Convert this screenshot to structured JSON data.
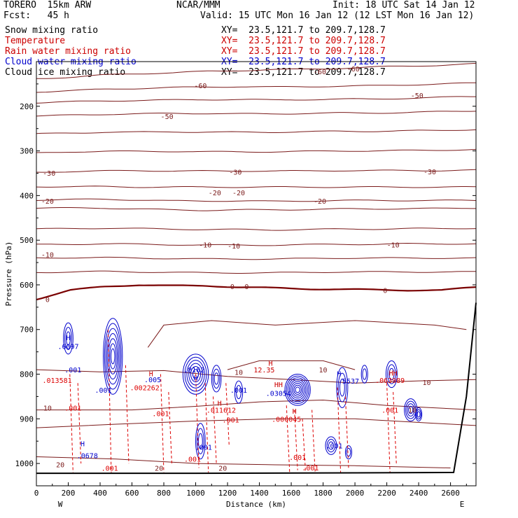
{
  "header": {
    "model": "TORERO  15km ARW",
    "org": "NCAR/MMM",
    "init": "Init: 18 UTC Sat 14 Jan 12",
    "fcst": "Fcst:   45 h",
    "valid": "Valid: 15 UTC Mon 16 Jan 12 (12 LST Mon 16 Jan 12)"
  },
  "fields": [
    {
      "name": "Snow mixing ratio",
      "xy": "XY=  23.5,121.7 to 209.7,128.7",
      "color": "#000000"
    },
    {
      "name": "Temperature",
      "xy": "XY=  23.5,121.7 to 209.7,128.7",
      "color": "#cc0000"
    },
    {
      "name": "Rain water mixing ratio",
      "xy": "XY=  23.5,121.7 to 209.7,128.7",
      "color": "#cc0000"
    },
    {
      "name": "Cloud water mixing ratio",
      "xy": "XY=  23.5,121.7 to 209.7,128.7",
      "color": "#0000cc"
    },
    {
      "name": "Cloud ice mixing ratio",
      "xy": "XY=  23.5,121.7 to 209.7,128.7",
      "color": "#000000"
    }
  ],
  "colors": {
    "temperature": "#7a1a1a",
    "zero_isotherm": "#7a0000",
    "cloud_water": "#0000cc",
    "rain_water": "#dd0000",
    "terrain": "#000000"
  },
  "chart_data": {
    "type": "contour",
    "xlabel": "Distance (km)",
    "ylabel": "Pressure (hPa)",
    "xlim": [
      0,
      2760
    ],
    "ylim": [
      1050,
      100
    ],
    "x_ticks": [
      0,
      200,
      400,
      600,
      800,
      1000,
      1200,
      1400,
      1600,
      1800,
      2000,
      2200,
      2400,
      2600
    ],
    "y_ticks": [
      200,
      300,
      400,
      500,
      600,
      700,
      800,
      900,
      1000
    ],
    "x_end_labels": {
      "left": "W",
      "right": "E"
    },
    "temperature_contours": [
      {
        "level": -60,
        "p": [
          138,
          135,
          130,
          127,
          125,
          122,
          120,
          118,
          117,
          115,
          112,
          110,
          108,
          105
        ]
      },
      {
        "level": -60,
        "p": [
          168,
          165,
          162,
          160,
          158,
          157,
          156,
          157,
          156,
          155,
          154,
          152,
          150,
          148
        ]
      },
      {
        "level": -50,
        "p": [
          192,
          190,
          188,
          187,
          186,
          185,
          185,
          186,
          185,
          184,
          184,
          182,
          180,
          178
        ]
      },
      {
        "level": -50,
        "p": [
          222,
          220,
          218,
          217,
          216,
          216,
          217,
          217,
          216,
          215,
          215,
          214,
          212,
          210
        ]
      },
      {
        "level": -40,
        "p": [
          262,
          260,
          258,
          258,
          257,
          258,
          258,
          258,
          257,
          256,
          256,
          255,
          254,
          252
        ]
      },
      {
        "level": -30,
        "p": [
          305,
          302,
          301,
          301,
          301,
          302,
          302,
          302,
          301,
          300,
          300,
          299,
          298,
          297
        ]
      },
      {
        "level": -30,
        "p": [
          348,
          346,
          345,
          344,
          345,
          345,
          345,
          345,
          345,
          344,
          344,
          344,
          344,
          343
        ]
      },
      {
        "level": -20,
        "p": [
          380,
          380,
          380,
          381,
          381,
          381,
          381,
          381,
          381,
          381,
          381,
          381,
          381,
          381
        ]
      },
      {
        "level": -20,
        "p": [
          410,
          409,
          408,
          410,
          412,
          412,
          412,
          413,
          412,
          411,
          411,
          411,
          411,
          411
        ]
      },
      {
        "level": -20,
        "p": [
          428,
          428,
          428,
          430,
          432,
          433,
          432,
          432,
          431,
          430,
          430,
          429,
          429,
          428
        ]
      },
      {
        "level": -10,
        "p": [
          475,
          474,
          473,
          474,
          475,
          476,
          476,
          477,
          476,
          475,
          475,
          474,
          474,
          473
        ]
      },
      {
        "level": -10,
        "p": [
          510,
          509,
          508,
          509,
          510,
          511,
          511,
          511,
          510,
          509,
          509,
          508,
          508,
          508
        ]
      },
      {
        "level": -10,
        "p": [
          540,
          539,
          539,
          540,
          541,
          542,
          542,
          542,
          541,
          540,
          540,
          540,
          540,
          540
        ]
      },
      {
        "level": -10,
        "p": [
          572,
          571,
          570,
          571,
          572,
          573,
          573,
          573,
          572,
          571,
          571,
          571,
          571,
          571
        ]
      },
      {
        "level": 0,
        "p": [
          632,
          612,
          604,
          600,
          602,
          602,
          605,
          607,
          609,
          610,
          611,
          612,
          612,
          605
        ]
      }
    ],
    "temperature_labels": [
      {
        "x": 1030,
        "p": 153,
        "text": "-60"
      },
      {
        "x": 1780,
        "p": 122,
        "text": "-60"
      },
      {
        "x": 1990,
        "p": 116,
        "text": "-60"
      },
      {
        "x": 2390,
        "p": 175,
        "text": "-50"
      },
      {
        "x": 820,
        "p": 222,
        "text": "-50"
      },
      {
        "x": 80,
        "p": 349,
        "text": "-30"
      },
      {
        "x": 1250,
        "p": 347,
        "text": "-30"
      },
      {
        "x": 2470,
        "p": 346,
        "text": "-30"
      },
      {
        "x": 70,
        "p": 412,
        "text": "-20"
      },
      {
        "x": 1120,
        "p": 393,
        "text": "-20"
      },
      {
        "x": 1270,
        "p": 393,
        "text": "-20"
      },
      {
        "x": 1780,
        "p": 412,
        "text": "-20"
      },
      {
        "x": 70,
        "p": 532,
        "text": "-10"
      },
      {
        "x": 1060,
        "p": 510,
        "text": "-10"
      },
      {
        "x": 1240,
        "p": 512,
        "text": "-10"
      },
      {
        "x": 2240,
        "p": 510,
        "text": "-10"
      },
      {
        "x": 70,
        "p": 632,
        "text": "0"
      },
      {
        "x": 1230,
        "p": 603,
        "text": "0"
      },
      {
        "x": 1320,
        "p": 603,
        "text": "0"
      },
      {
        "x": 2190,
        "p": 612,
        "text": "0"
      },
      {
        "x": 1270,
        "p": 795,
        "text": "10"
      },
      {
        "x": 1800,
        "p": 790,
        "text": "10"
      },
      {
        "x": 70,
        "p": 875,
        "text": "10"
      },
      {
        "x": 2360,
        "p": 880,
        "text": "10"
      },
      {
        "x": 2450,
        "p": 818,
        "text": "10"
      },
      {
        "x": 150,
        "p": 1002,
        "text": "20"
      },
      {
        "x": 770,
        "p": 1010,
        "text": "20"
      },
      {
        "x": 1170,
        "p": 1010,
        "text": "20"
      }
    ],
    "rain_labels": [
      {
        "x": 130,
        "p": 813,
        "text": ".013581"
      },
      {
        "x": 230,
        "p": 875,
        "text": ".001"
      },
      {
        "x": 680,
        "p": 830,
        "text": ".002262"
      },
      {
        "x": 780,
        "p": 888,
        "text": ".001"
      },
      {
        "x": 1160,
        "p": 880,
        "text": ".011612"
      },
      {
        "x": 1220,
        "p": 902,
        "text": ".001"
      },
      {
        "x": 1570,
        "p": 900,
        "text": ".000045"
      },
      {
        "x": 1640,
        "p": 986,
        "text": ".001"
      },
      {
        "x": 1720,
        "p": 1009,
        "text": ".001"
      },
      {
        "x": 2220,
        "p": 813,
        "text": ".063989"
      },
      {
        "x": 2220,
        "p": 880,
        "text": ".001"
      },
      {
        "x": 460,
        "p": 1010,
        "text": ".001"
      },
      {
        "x": 980,
        "p": 990,
        "text": ".001"
      }
    ],
    "cloud_labels": [
      {
        "x": 200,
        "p": 737,
        "text": ".6097"
      },
      {
        "x": 230,
        "p": 790,
        "text": ".001"
      },
      {
        "x": 420,
        "p": 835,
        "text": ".001"
      },
      {
        "x": 730,
        "p": 812,
        "text": ".005"
      },
      {
        "x": 990,
        "p": 790,
        "text": ".8162"
      },
      {
        "x": 1050,
        "p": 963,
        "text": ".001"
      },
      {
        "x": 1270,
        "p": 835,
        "text": ".001"
      },
      {
        "x": 1520,
        "p": 842,
        "text": ".03054"
      },
      {
        "x": 1960,
        "p": 815,
        "text": ".5537"
      },
      {
        "x": 1870,
        "p": 960,
        "text": ".001"
      },
      {
        "x": 320,
        "p": 982,
        "text": ".0678"
      }
    ],
    "extrema": [
      {
        "x": 200,
        "p": 718,
        "text": "H",
        "color": "#0000cc"
      },
      {
        "x": 290,
        "p": 955,
        "text": "H",
        "color": "#0000cc"
      },
      {
        "x": 1000,
        "p": 808,
        "text": "H",
        "color": "#0000cc"
      },
      {
        "x": 1900,
        "p": 798,
        "text": "H",
        "color": "#0000cc"
      },
      {
        "x": 1520,
        "p": 823,
        "text": "HH",
        "color": "#cc0000"
      },
      {
        "x": 1470,
        "p": 775,
        "text": "H",
        "color": "#cc0000"
      },
      {
        "x": 1620,
        "p": 882,
        "text": "H",
        "color": "#cc0000"
      },
      {
        "x": 2240,
        "p": 797,
        "text": "HH",
        "color": "#cc0000"
      },
      {
        "x": 1430,
        "p": 790,
        "text": "12.35",
        "color": "#cc0000"
      },
      {
        "x": 1150,
        "p": 864,
        "text": "H",
        "color": "#cc0000"
      },
      {
        "x": 720,
        "p": 798,
        "text": "H",
        "color": "#cc0000"
      }
    ],
    "terrain": {
      "x": [
        0,
        1000,
        2000,
        2620,
        2700,
        2760
      ],
      "p": [
        1022,
        1022,
        1021,
        1020,
        850,
        640
      ]
    }
  }
}
